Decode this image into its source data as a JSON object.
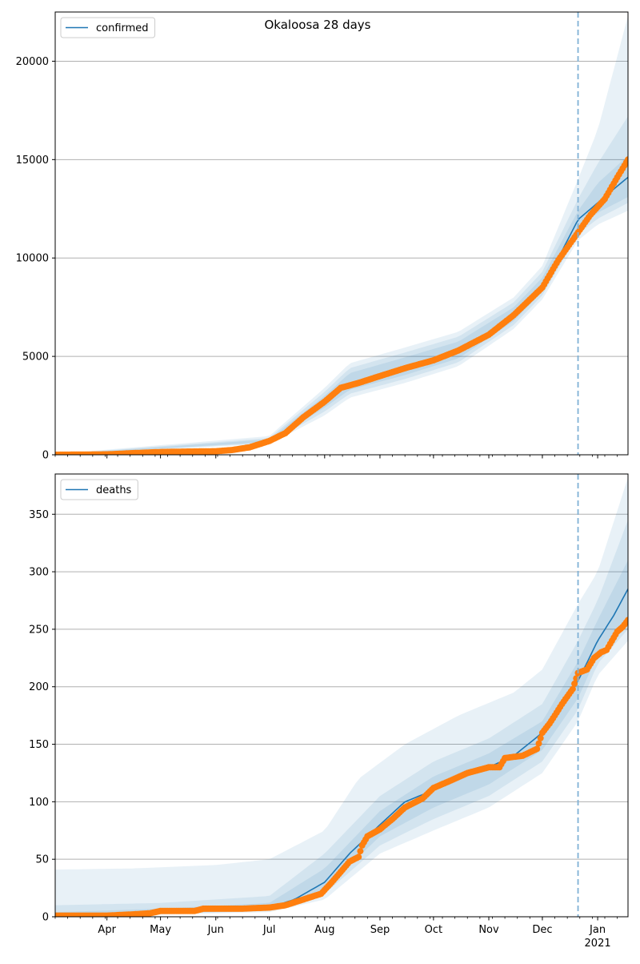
{
  "suptitle": "Okaloosa 28 days",
  "colors": {
    "model_line": "#1f77b4",
    "observed": "#ff7f0e",
    "band": "#1f77b4",
    "grid": "#b0b0b0",
    "forecast_marker": "#7fb1d6"
  },
  "x_axis": {
    "tick_labels": [
      {
        "date": "2020-04-01",
        "label": "Apr"
      },
      {
        "date": "2020-05-01",
        "label": "May"
      },
      {
        "date": "2020-06-01",
        "label": "Jun"
      },
      {
        "date": "2020-07-01",
        "label": "Jul"
      },
      {
        "date": "2020-08-01",
        "label": "Aug"
      },
      {
        "date": "2020-09-01",
        "label": "Sep"
      },
      {
        "date": "2020-10-01",
        "label": "Oct"
      },
      {
        "date": "2020-11-01",
        "label": "Nov"
      },
      {
        "date": "2020-12-01",
        "label": "Dec"
      },
      {
        "date": "2021-01-01",
        "label": "Jan",
        "sublabel": "2021"
      }
    ],
    "range": [
      "2020-03-03",
      "2021-01-18"
    ],
    "forecast_start": "2020-12-21"
  },
  "chart_data": [
    {
      "type": "line",
      "legend": "confirmed",
      "legend_position": "upper-left",
      "ylim": [
        0,
        22500
      ],
      "yticks": [
        0,
        5000,
        10000,
        15000,
        20000
      ],
      "grid": "y",
      "model": [
        [
          "2020-03-03",
          5
        ],
        [
          "2020-05-01",
          120
        ],
        [
          "2020-06-01",
          200
        ],
        [
          "2020-06-15",
          330
        ],
        [
          "2020-07-01",
          700
        ],
        [
          "2020-07-10",
          1150
        ],
        [
          "2020-07-20",
          1850
        ],
        [
          "2020-08-01",
          2700
        ],
        [
          "2020-08-10",
          3400
        ],
        [
          "2020-08-20",
          3750
        ],
        [
          "2020-09-01",
          4100
        ],
        [
          "2020-09-15",
          4450
        ],
        [
          "2020-10-01",
          4850
        ],
        [
          "2020-10-15",
          5300
        ],
        [
          "2020-11-01",
          6100
        ],
        [
          "2020-11-15",
          7100
        ],
        [
          "2020-12-01",
          8600
        ],
        [
          "2020-12-10",
          10000
        ],
        [
          "2020-12-21",
          11950
        ],
        [
          "2021-01-01",
          12800
        ],
        [
          "2021-01-10",
          13500
        ],
        [
          "2021-01-18",
          14100
        ]
      ],
      "bands": [
        {
          "lower": [
            [
              "2020-03-03",
              0
            ],
            [
              "2020-07-01",
              550
            ],
            [
              "2020-08-01",
              2000
            ],
            [
              "2020-08-15",
              2900
            ],
            [
              "2020-09-15",
              3650
            ],
            [
              "2020-10-15",
              4500
            ],
            [
              "2020-11-15",
              6400
            ],
            [
              "2020-12-01",
              7900
            ],
            [
              "2020-12-21",
              10900
            ],
            [
              "2021-01-01",
              11700
            ],
            [
              "2021-01-18",
              12400
            ]
          ],
          "upper": [
            [
              "2020-03-03",
              40
            ],
            [
              "2020-07-01",
              950
            ],
            [
              "2020-08-01",
              3400
            ],
            [
              "2020-08-15",
              4650
            ],
            [
              "2020-09-15",
              5450
            ],
            [
              "2020-10-15",
              6250
            ],
            [
              "2020-11-15",
              8000
            ],
            [
              "2020-12-01",
              9600
            ],
            [
              "2020-12-21",
              14000
            ],
            [
              "2021-01-01",
              16500
            ],
            [
              "2021-01-18",
              22300
            ]
          ]
        },
        {
          "lower": [
            [
              "2020-03-03",
              0
            ],
            [
              "2020-07-01",
              600
            ],
            [
              "2020-08-01",
              2200
            ],
            [
              "2020-08-15",
              3100
            ],
            [
              "2020-09-15",
              3850
            ],
            [
              "2020-10-15",
              4700
            ],
            [
              "2020-11-15",
              6600
            ],
            [
              "2020-12-01",
              8100
            ],
            [
              "2020-12-21",
              11200
            ],
            [
              "2021-01-01",
              12000
            ],
            [
              "2021-01-18",
              12800
            ]
          ],
          "upper": [
            [
              "2020-03-03",
              25
            ],
            [
              "2020-07-01",
              850
            ],
            [
              "2020-08-01",
              3200
            ],
            [
              "2020-08-15",
              4400
            ],
            [
              "2020-09-15",
              5200
            ],
            [
              "2020-10-15",
              6000
            ],
            [
              "2020-11-15",
              7750
            ],
            [
              "2020-12-01",
              9300
            ],
            [
              "2020-12-21",
              13000
            ],
            [
              "2021-01-01",
              14800
            ],
            [
              "2021-01-18",
              17200
            ]
          ]
        },
        {
          "lower": [
            [
              "2020-03-03",
              0
            ],
            [
              "2020-07-01",
              650
            ],
            [
              "2020-08-01",
              2400
            ],
            [
              "2020-08-15",
              3300
            ],
            [
              "2020-09-15",
              4050
            ],
            [
              "2020-10-15",
              4900
            ],
            [
              "2020-11-15",
              6800
            ],
            [
              "2020-12-01",
              8300
            ],
            [
              "2020-12-21",
              11500
            ],
            [
              "2021-01-01",
              12300
            ],
            [
              "2021-01-18",
              13100
            ]
          ],
          "upper": [
            [
              "2020-03-03",
              15
            ],
            [
              "2020-07-01",
              780
            ],
            [
              "2020-08-01",
              3000
            ],
            [
              "2020-08-15",
              4150
            ],
            [
              "2020-09-15",
              4950
            ],
            [
              "2020-10-15",
              5750
            ],
            [
              "2020-11-15",
              7500
            ],
            [
              "2020-12-01",
              9000
            ],
            [
              "2020-12-21",
              12400
            ],
            [
              "2021-01-01",
              13800
            ],
            [
              "2021-01-18",
              15200
            ]
          ]
        }
      ],
      "observed": [
        [
          "2020-03-03",
          0
        ],
        [
          "2020-04-01",
          20
        ],
        [
          "2020-04-15",
          80
        ],
        [
          "2020-05-01",
          140
        ],
        [
          "2020-05-15",
          160
        ],
        [
          "2020-06-01",
          180
        ],
        [
          "2020-06-10",
          240
        ],
        [
          "2020-06-20",
          380
        ],
        [
          "2020-07-01",
          700
        ],
        [
          "2020-07-10",
          1100
        ],
        [
          "2020-07-20",
          1900
        ],
        [
          "2020-08-01",
          2700
        ],
        [
          "2020-08-10",
          3400
        ],
        [
          "2020-08-20",
          3650
        ],
        [
          "2020-09-01",
          4000
        ],
        [
          "2020-09-15",
          4400
        ],
        [
          "2020-10-01",
          4800
        ],
        [
          "2020-10-15",
          5300
        ],
        [
          "2020-11-01",
          6100
        ],
        [
          "2020-11-15",
          7100
        ],
        [
          "2020-12-01",
          8500
        ],
        [
          "2020-12-10",
          9900
        ],
        [
          "2020-12-21",
          11300
        ],
        [
          "2020-12-28",
          12200
        ],
        [
          "2021-01-05",
          13000
        ],
        [
          "2021-01-12",
          14100
        ],
        [
          "2021-01-18",
          15000
        ]
      ]
    },
    {
      "type": "line",
      "legend": "deaths",
      "legend_position": "upper-left",
      "ylim": [
        0,
        385
      ],
      "yticks": [
        0,
        50,
        100,
        150,
        200,
        250,
        300,
        350
      ],
      "grid": "y",
      "model": [
        [
          "2020-03-03",
          0
        ],
        [
          "2020-05-01",
          4
        ],
        [
          "2020-06-01",
          6
        ],
        [
          "2020-07-01",
          8
        ],
        [
          "2020-07-15",
          15
        ],
        [
          "2020-08-01",
          30
        ],
        [
          "2020-08-15",
          55
        ],
        [
          "2020-09-01",
          80
        ],
        [
          "2020-09-15",
          100
        ],
        [
          "2020-10-01",
          110
        ],
        [
          "2020-10-15",
          120
        ],
        [
          "2020-11-01",
          130
        ],
        [
          "2020-11-15",
          140
        ],
        [
          "2020-12-01",
          160
        ],
        [
          "2020-12-10",
          180
        ],
        [
          "2020-12-21",
          205
        ],
        [
          "2021-01-01",
          240
        ],
        [
          "2021-01-10",
          262
        ],
        [
          "2021-01-18",
          285
        ]
      ],
      "bands": [
        {
          "lower": [
            [
              "2020-03-03",
              0
            ],
            [
              "2020-07-01",
              4
            ],
            [
              "2020-08-01",
              15
            ],
            [
              "2020-09-01",
              55
            ],
            [
              "2020-10-01",
              75
            ],
            [
              "2020-11-01",
              95
            ],
            [
              "2020-12-01",
              125
            ],
            [
              "2020-12-21",
              170
            ],
            [
              "2021-01-01",
              210
            ],
            [
              "2021-01-18",
              240
            ]
          ],
          "upper": [
            [
              "2020-03-03",
              41
            ],
            [
              "2020-04-15",
              42
            ],
            [
              "2020-06-01",
              45
            ],
            [
              "2020-07-01",
              50
            ],
            [
              "2020-08-01",
              75
            ],
            [
              "2020-08-20",
              120
            ],
            [
              "2020-09-15",
              150
            ],
            [
              "2020-10-15",
              175
            ],
            [
              "2020-11-15",
              195
            ],
            [
              "2020-12-01",
              215
            ],
            [
              "2020-12-21",
              272
            ],
            [
              "2021-01-01",
              300
            ],
            [
              "2021-01-18",
              382
            ]
          ]
        },
        {
          "lower": [
            [
              "2020-03-03",
              0
            ],
            [
              "2020-07-01",
              5
            ],
            [
              "2020-08-01",
              20
            ],
            [
              "2020-09-01",
              62
            ],
            [
              "2020-10-01",
              85
            ],
            [
              "2020-11-01",
              105
            ],
            [
              "2020-12-01",
              135
            ],
            [
              "2020-12-21",
              180
            ],
            [
              "2021-01-01",
              220
            ],
            [
              "2021-01-18",
              250
            ]
          ],
          "upper": [
            [
              "2020-03-03",
              10
            ],
            [
              "2020-05-01",
              12
            ],
            [
              "2020-07-01",
              18
            ],
            [
              "2020-08-01",
              55
            ],
            [
              "2020-09-01",
              105
            ],
            [
              "2020-10-01",
              135
            ],
            [
              "2020-11-01",
              155
            ],
            [
              "2020-12-01",
              185
            ],
            [
              "2020-12-21",
              240
            ],
            [
              "2021-01-01",
              275
            ],
            [
              "2021-01-18",
              345
            ]
          ]
        },
        {
          "lower": [
            [
              "2020-03-03",
              0
            ],
            [
              "2020-07-01",
              6
            ],
            [
              "2020-08-01",
              24
            ],
            [
              "2020-09-01",
              70
            ],
            [
              "2020-10-01",
              95
            ],
            [
              "2020-11-01",
              115
            ],
            [
              "2020-12-01",
              145
            ],
            [
              "2020-12-21",
              190
            ],
            [
              "2021-01-01",
              228
            ],
            [
              "2021-01-18",
              262
            ]
          ],
          "upper": [
            [
              "2020-03-03",
              4
            ],
            [
              "2020-05-01",
              7
            ],
            [
              "2020-07-01",
              12
            ],
            [
              "2020-08-01",
              42
            ],
            [
              "2020-09-01",
              92
            ],
            [
              "2020-10-01",
              122
            ],
            [
              "2020-11-01",
              142
            ],
            [
              "2020-12-01",
              170
            ],
            [
              "2020-12-21",
              222
            ],
            [
              "2021-01-01",
              258
            ],
            [
              "2021-01-18",
              310
            ]
          ]
        }
      ],
      "observed": [
        [
          "2020-03-03",
          1
        ],
        [
          "2020-04-01",
          1
        ],
        [
          "2020-04-15",
          2
        ],
        [
          "2020-04-25",
          3
        ],
        [
          "2020-05-01",
          5
        ],
        [
          "2020-05-20",
          5
        ],
        [
          "2020-05-25",
          7
        ],
        [
          "2020-06-15",
          7
        ],
        [
          "2020-07-01",
          8
        ],
        [
          "2020-07-10",
          10
        ],
        [
          "2020-07-20",
          15
        ],
        [
          "2020-07-30",
          20
        ],
        [
          "2020-08-05",
          30
        ],
        [
          "2020-08-15",
          48
        ],
        [
          "2020-08-20",
          52
        ],
        [
          "2020-08-22",
          62
        ],
        [
          "2020-08-25",
          70
        ],
        [
          "2020-09-01",
          76
        ],
        [
          "2020-09-08",
          85
        ],
        [
          "2020-09-15",
          95
        ],
        [
          "2020-09-25",
          103
        ],
        [
          "2020-10-01",
          112
        ],
        [
          "2020-10-10",
          118
        ],
        [
          "2020-10-20",
          125
        ],
        [
          "2020-11-01",
          130
        ],
        [
          "2020-11-07",
          130
        ],
        [
          "2020-11-10",
          138
        ],
        [
          "2020-11-20",
          140
        ],
        [
          "2020-11-28",
          146
        ],
        [
          "2020-12-01",
          160
        ],
        [
          "2020-12-05",
          168
        ],
        [
          "2020-12-08",
          175
        ],
        [
          "2020-12-12",
          185
        ],
        [
          "2020-12-18",
          198
        ],
        [
          "2020-12-21",
          212
        ],
        [
          "2020-12-26",
          215
        ],
        [
          "2020-12-30",
          225
        ],
        [
          "2021-01-03",
          230
        ],
        [
          "2021-01-06",
          232
        ],
        [
          "2021-01-09",
          240
        ],
        [
          "2021-01-12",
          248
        ],
        [
          "2021-01-15",
          252
        ],
        [
          "2021-01-18",
          258
        ]
      ]
    }
  ]
}
